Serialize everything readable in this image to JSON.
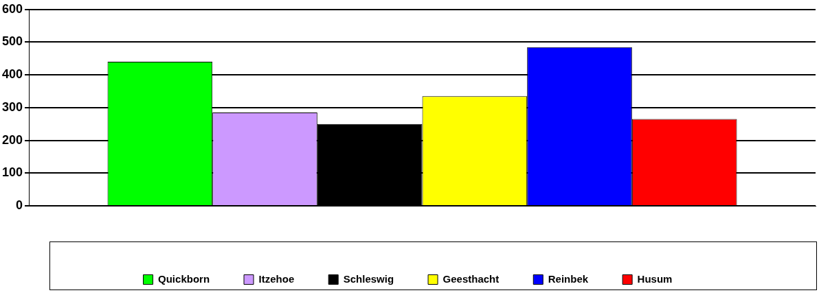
{
  "chart_data": {
    "type": "bar",
    "categories": [
      null
    ],
    "series": [
      {
        "name": "Quickborn",
        "color": "#00ff00",
        "values": [
          440
        ]
      },
      {
        "name": "Itzehoe",
        "color": "#cc99ff",
        "values": [
          285
        ]
      },
      {
        "name": "Schleswig",
        "color": "#000000",
        "values": [
          250
        ]
      },
      {
        "name": "Geesthacht",
        "color": "#ffff00",
        "values": [
          335
        ]
      },
      {
        "name": "Reinbek",
        "color": "#0000ff",
        "values": [
          485
        ]
      },
      {
        "name": "Husum",
        "color": "#ff0000",
        "values": [
          265
        ]
      }
    ],
    "ylim": [
      0,
      600
    ],
    "yticks": [
      0,
      100,
      200,
      300,
      400,
      500,
      600
    ],
    "grid": "y",
    "legend": "bottom"
  }
}
